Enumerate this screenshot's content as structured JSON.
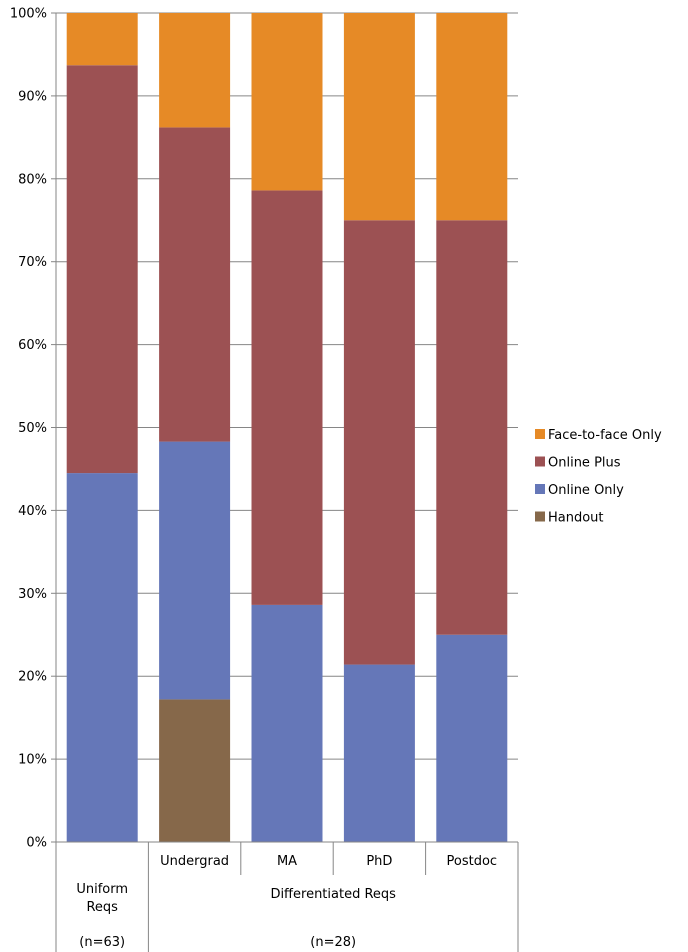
{
  "chart_data": {
    "type": "bar",
    "stacked": true,
    "percent": true,
    "categories": [
      "",
      "Undergrad",
      "MA",
      "PhD",
      "Postdoc"
    ],
    "groups": [
      {
        "label": "Uniform\nReqs",
        "n_label": "(n=63)",
        "span": [
          0,
          0
        ]
      },
      {
        "label": "Differentiated Reqs",
        "n_label": "(n=28)",
        "span": [
          1,
          4
        ]
      }
    ],
    "series": [
      {
        "name": "Handout",
        "color": "#86684A",
        "values": [
          0,
          17.2,
          0,
          0,
          0
        ]
      },
      {
        "name": "Online Only",
        "color": "#6577B8",
        "values": [
          44.5,
          31.1,
          28.6,
          21.4,
          25.0
        ]
      },
      {
        "name": "Online Plus",
        "color": "#9C5153",
        "values": [
          49.2,
          37.9,
          50.0,
          53.6,
          50.0
        ]
      },
      {
        "name": "Face-to-face Only",
        "color": "#E68A26",
        "values": [
          6.3,
          13.8,
          21.4,
          25.0,
          25.0
        ]
      }
    ],
    "legend_order": [
      "Face-to-face Only",
      "Online Plus",
      "Online Only",
      "Handout"
    ],
    "legend_position": "right",
    "ylim": [
      0,
      100
    ],
    "yticks": [
      "0%",
      "10%",
      "20%",
      "30%",
      "40%",
      "50%",
      "60%",
      "70%",
      "80%",
      "90%",
      "100%"
    ],
    "grid": true
  }
}
